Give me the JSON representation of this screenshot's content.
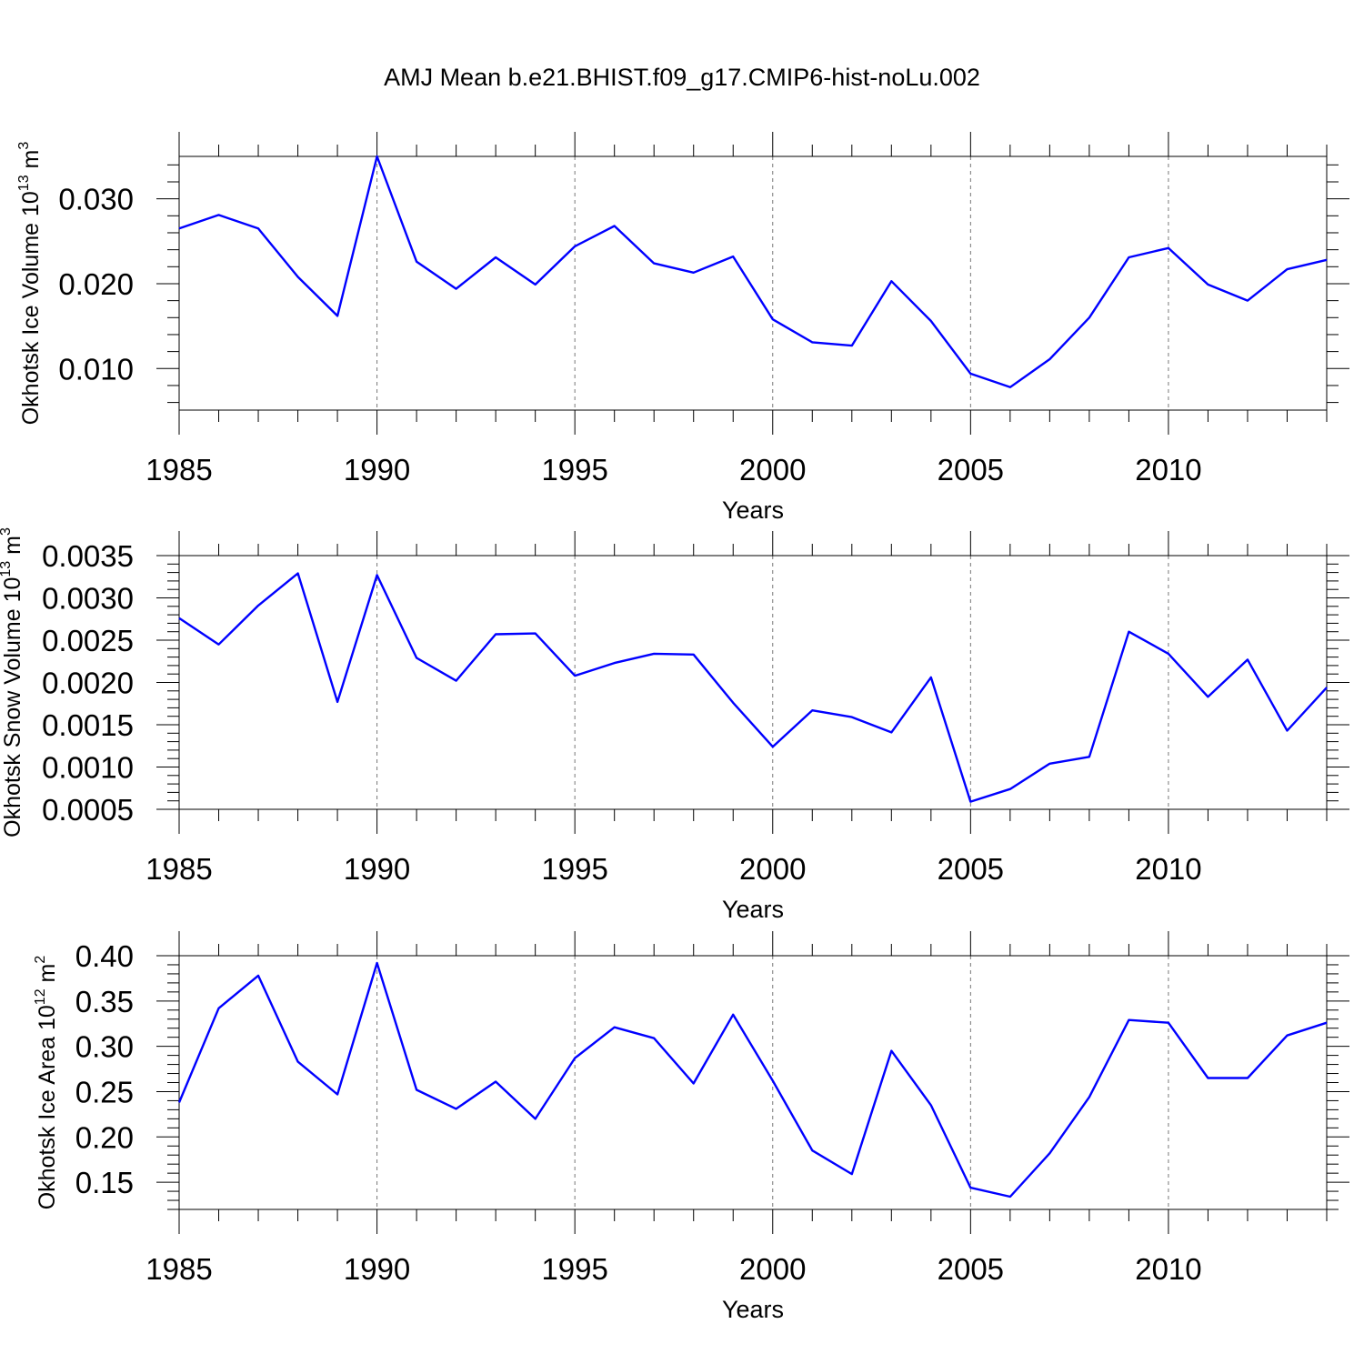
{
  "title": "AMJ Mean b.e21.BHIST.f09_g17.CMIP6-hist-noLu.002",
  "colors": {
    "line": "#0000ff",
    "grid": "#777777",
    "axis": "#000000"
  },
  "chart_data": [
    {
      "type": "line",
      "name": "ice-volume",
      "xlabel": "Years",
      "ylabel": {
        "prefix": "Okhotsk Ice Volume 10",
        "exp": "13",
        "unit": " m",
        "unit_exp": "3"
      },
      "x": [
        1985,
        1986,
        1987,
        1988,
        1989,
        1990,
        1991,
        1992,
        1993,
        1994,
        1995,
        1996,
        1997,
        1998,
        1999,
        2000,
        2001,
        2002,
        2003,
        2004,
        2005,
        2006,
        2007,
        2008,
        2009,
        2010,
        2011,
        2012,
        2013,
        2014
      ],
      "values": [
        0.0265,
        0.0281,
        0.0265,
        0.0208,
        0.0162,
        0.035,
        0.0226,
        0.0194,
        0.0231,
        0.0199,
        0.0244,
        0.0268,
        0.0224,
        0.0213,
        0.0232,
        0.0158,
        0.0131,
        0.0127,
        0.0203,
        0.0156,
        0.0094,
        0.0078,
        0.0111,
        0.016,
        0.0231,
        0.0242,
        0.0199,
        0.018,
        0.0217,
        0.0228
      ],
      "xlim": [
        1985,
        2014
      ],
      "ylim": [
        0.0051,
        0.035
      ],
      "xticks": [
        1985,
        1990,
        1995,
        2000,
        2005,
        2010
      ],
      "xtick_labels": [
        "1985",
        "1990",
        "1995",
        "2000",
        "2005",
        "2010"
      ],
      "xminor": [
        1986,
        1987,
        1988,
        1989,
        1991,
        1992,
        1993,
        1994,
        1996,
        1997,
        1998,
        1999,
        2001,
        2002,
        2003,
        2004,
        2006,
        2007,
        2008,
        2009,
        2011,
        2012,
        2013,
        2014
      ],
      "yticks": [
        0.01,
        0.02,
        0.03
      ],
      "ytick_labels": [
        "0.010",
        "0.020",
        "0.030"
      ],
      "yminor_step": 0.002,
      "xgrid": [
        1990,
        1995,
        2000,
        2005,
        2010
      ]
    },
    {
      "type": "line",
      "name": "snow-volume",
      "xlabel": "Years",
      "ylabel": {
        "prefix": "Okhotsk Snow Volume 10",
        "exp": "13",
        "unit": " m",
        "unit_exp": "3"
      },
      "x": [
        1985,
        1986,
        1987,
        1988,
        1989,
        1990,
        1991,
        1992,
        1993,
        1994,
        1995,
        1996,
        1997,
        1998,
        1999,
        2000,
        2001,
        2002,
        2003,
        2004,
        2005,
        2006,
        2007,
        2008,
        2009,
        2010,
        2011,
        2012,
        2013,
        2014
      ],
      "values": [
        0.00276,
        0.00245,
        0.00291,
        0.00329,
        0.00177,
        0.00327,
        0.00229,
        0.00202,
        0.00257,
        0.00258,
        0.00208,
        0.00223,
        0.00234,
        0.00233,
        0.00176,
        0.00124,
        0.00167,
        0.00159,
        0.00141,
        0.00206,
        0.00059,
        0.00074,
        0.00104,
        0.00112,
        0.0026,
        0.00234,
        0.00183,
        0.00227,
        0.00143,
        0.00194
      ],
      "xlim": [
        1985,
        2014
      ],
      "ylim": [
        0.0005,
        0.0035
      ],
      "xticks": [
        1985,
        1990,
        1995,
        2000,
        2005,
        2010
      ],
      "xtick_labels": [
        "1985",
        "1990",
        "1995",
        "2000",
        "2005",
        "2010"
      ],
      "xminor": [
        1986,
        1987,
        1988,
        1989,
        1991,
        1992,
        1993,
        1994,
        1996,
        1997,
        1998,
        1999,
        2001,
        2002,
        2003,
        2004,
        2006,
        2007,
        2008,
        2009,
        2011,
        2012,
        2013,
        2014
      ],
      "yticks": [
        0.0005,
        0.001,
        0.0015,
        0.002,
        0.0025,
        0.003,
        0.0035
      ],
      "ytick_labels": [
        "0.0005",
        "0.0010",
        "0.0015",
        "0.0020",
        "0.0025",
        "0.0030",
        "0.0035"
      ],
      "yminor_step": 0.0001,
      "xgrid": [
        1990,
        1995,
        2000,
        2005,
        2010
      ]
    },
    {
      "type": "line",
      "name": "ice-area",
      "xlabel": "Years",
      "ylabel": {
        "prefix": "Okhotsk Ice Area 10",
        "exp": "12",
        "unit": " m",
        "unit_exp": "2"
      },
      "x": [
        1985,
        1986,
        1987,
        1988,
        1989,
        1990,
        1991,
        1992,
        1993,
        1994,
        1995,
        1996,
        1997,
        1998,
        1999,
        2000,
        2001,
        2002,
        2003,
        2004,
        2005,
        2006,
        2007,
        2008,
        2009,
        2010,
        2011,
        2012,
        2013,
        2014
      ],
      "values": [
        0.238,
        0.342,
        0.378,
        0.283,
        0.247,
        0.392,
        0.252,
        0.231,
        0.261,
        0.22,
        0.287,
        0.321,
        0.309,
        0.259,
        0.335,
        0.262,
        0.185,
        0.159,
        0.295,
        0.235,
        0.144,
        0.134,
        0.182,
        0.244,
        0.329,
        0.326,
        0.265,
        0.265,
        0.312,
        0.326
      ],
      "xlim": [
        1985,
        2014
      ],
      "ylim": [
        0.12,
        0.4
      ],
      "xticks": [
        1985,
        1990,
        1995,
        2000,
        2005,
        2010
      ],
      "xtick_labels": [
        "1985",
        "1990",
        "1995",
        "2000",
        "2005",
        "2010"
      ],
      "xminor": [
        1986,
        1987,
        1988,
        1989,
        1991,
        1992,
        1993,
        1994,
        1996,
        1997,
        1998,
        1999,
        2001,
        2002,
        2003,
        2004,
        2006,
        2007,
        2008,
        2009,
        2011,
        2012,
        2013,
        2014
      ],
      "yticks": [
        0.15,
        0.2,
        0.25,
        0.3,
        0.35,
        0.4
      ],
      "ytick_labels": [
        "0.15",
        "0.20",
        "0.25",
        "0.30",
        "0.35",
        "0.40"
      ],
      "yminor_step": 0.01,
      "xgrid": [
        1990,
        1995,
        2000,
        2005,
        2010
      ]
    }
  ]
}
